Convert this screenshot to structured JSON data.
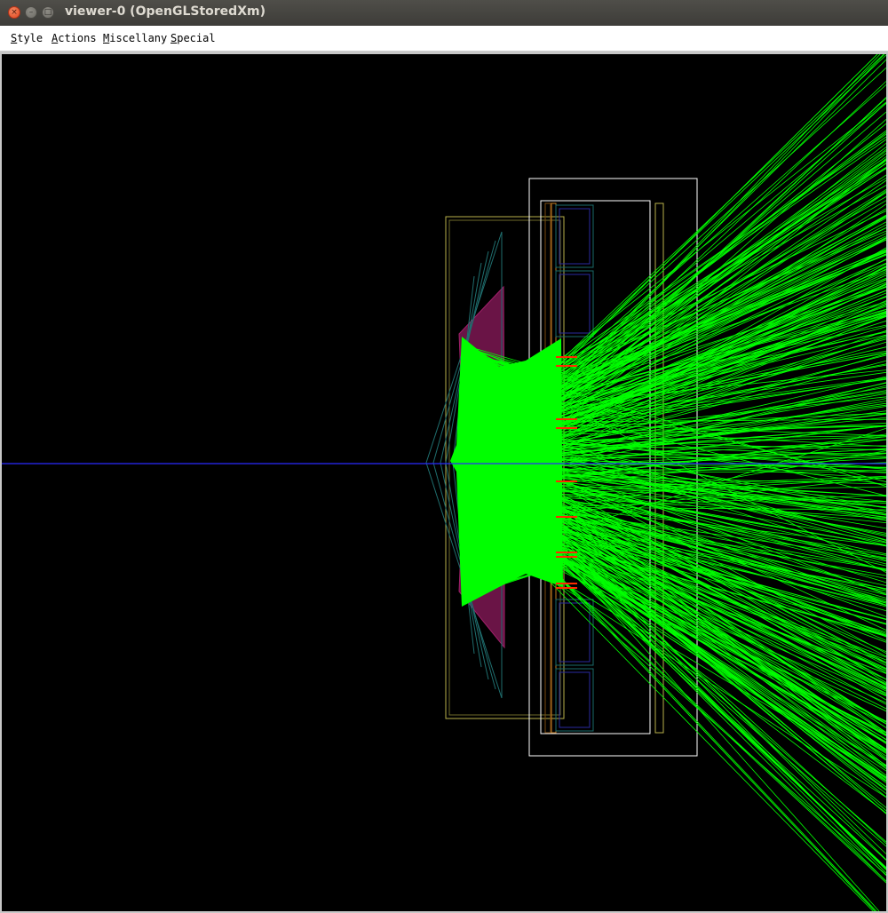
{
  "window": {
    "title": "viewer-0 (OpenGLStoredXm)",
    "close_glyph": "×",
    "minimize_glyph": "–",
    "maximize_glyph": "□"
  },
  "menubar": {
    "items": [
      {
        "mnemonic": "S",
        "rest": "tyle"
      },
      {
        "mnemonic": "A",
        "rest": "ctions"
      },
      {
        "mnemonic": "M",
        "rest": "iscellany"
      },
      {
        "mnemonic": "S",
        "rest": "pecial"
      }
    ]
  },
  "scene": {
    "background": "#000000",
    "axis_color": "#2a2aff",
    "track_color": "#00ff00",
    "detector_outline_color": "#ffffff",
    "mirror_color": "#8a1a5a",
    "support_color": "#b8b04a",
    "hit_color": "#ff2a00"
  }
}
